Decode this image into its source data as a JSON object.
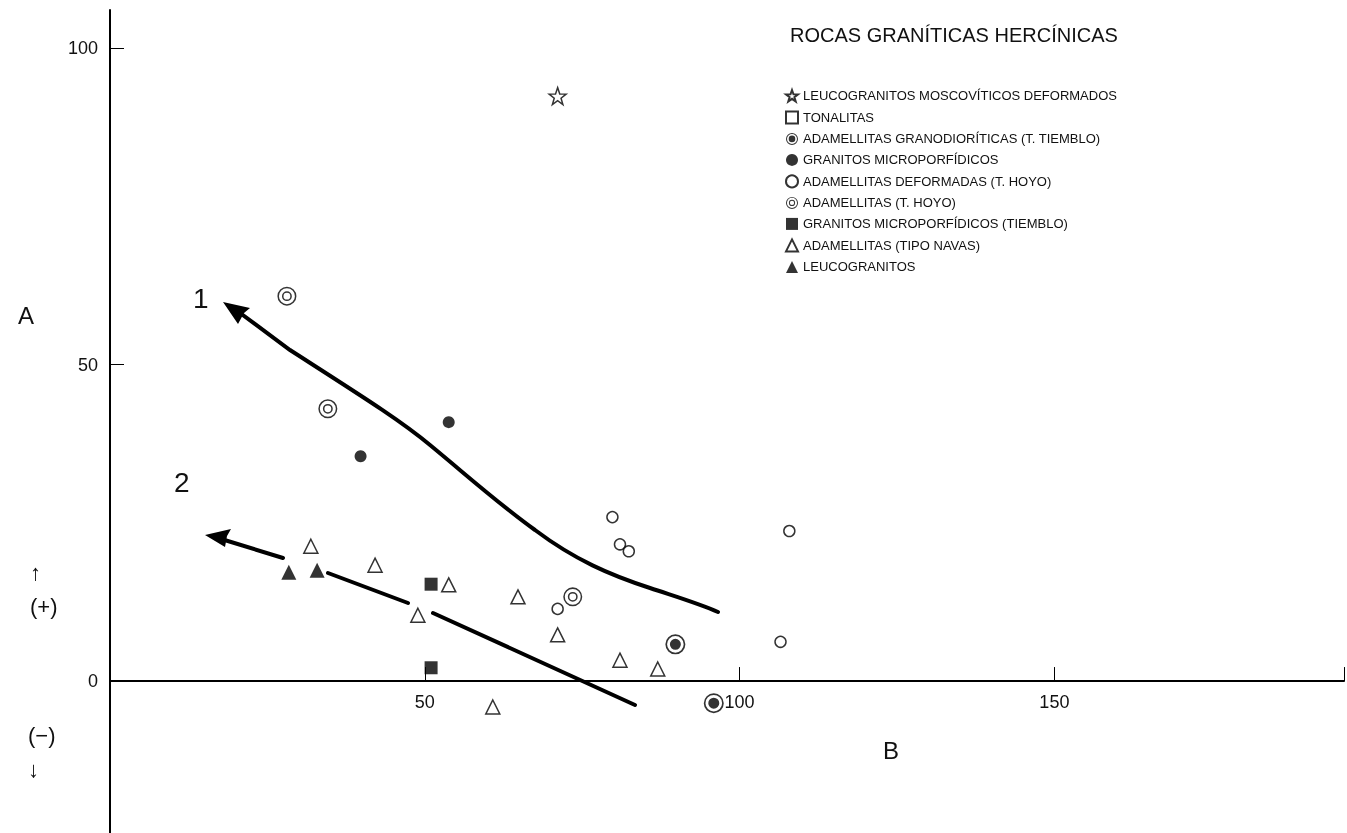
{
  "chart_data": {
    "type": "scatter",
    "xlabel": "B",
    "ylabel": "A",
    "legend_title": "ROCAS GRANÍTICAS HERCÍNICAS",
    "legend": "top right",
    "xlim": [
      0,
      196
    ],
    "ylim": [
      -24,
      106
    ],
    "xticks": [
      50,
      100,
      150
    ],
    "yticks": [
      0,
      50,
      100
    ],
    "series": [
      {
        "name": "LEUCOGRANITOS MOSCOVÍTICOS DEFORMADOS",
        "color": "#000000",
        "marker": "star-open",
        "x": [
          71.1
        ],
        "values": [
          92.4
        ]
      },
      {
        "name": "TONALITAS",
        "color": "#000000",
        "marker": "square-open"
      },
      {
        "name": "ADAMELLITAS GRANODIORÍTICAS (T. TIEMBLO)",
        "color": "#000000",
        "marker": "circle-dot",
        "x": [
          89.8,
          95.9
        ],
        "values": [
          5.8,
          -3.5
        ]
      },
      {
        "name": "GRANITOS MICROPORFÍDICOS",
        "color": "#000000",
        "marker": "circle",
        "x": [
          53.8,
          39.8
        ],
        "values": [
          40.9,
          35.5
        ]
      },
      {
        "name": "ADAMELLITAS DEFORMADAS (T. HOYO)",
        "color": "#000000",
        "marker": "circle-open",
        "x": [
          79.8,
          81.0,
          82.4,
          107.9,
          71.1,
          106.5
        ],
        "values": [
          25.9,
          21.6,
          20.5,
          23.7,
          11.4,
          6.2
        ]
      },
      {
        "name": "ADAMELLITAS (T. HOYO)",
        "color": "#000000",
        "marker": "circle-double",
        "x": [
          28.1,
          34.6,
          73.5
        ],
        "values": [
          60.8,
          43.0,
          13.3
        ]
      },
      {
        "name": "GRANITOS MICROPORFÍDICOS (TIEMBLO)",
        "color": "#000000",
        "marker": "square",
        "x": [
          51.0,
          51.0
        ],
        "values": [
          15.3,
          2.1
        ]
      },
      {
        "name": "ADAMELLITAS (TIPO NAVAS)",
        "color": "#000000",
        "marker": "triangle-open",
        "x": [
          31.9,
          42.1,
          53.8,
          48.9,
          64.8,
          71.1,
          60.8,
          81.0,
          87.0
        ],
        "values": [
          21.3,
          18.3,
          15.2,
          10.4,
          13.3,
          7.3,
          -4.1,
          3.3,
          1.9
        ]
      },
      {
        "name": "LEUCOGRANITOS",
        "color": "#000000",
        "marker": "triangle",
        "x": [
          28.4,
          32.9
        ],
        "values": [
          17.2,
          17.5
        ]
      }
    ],
    "annotations": [
      "1",
      "2",
      "↑\n(+)",
      "(−)\n↓"
    ]
  }
}
